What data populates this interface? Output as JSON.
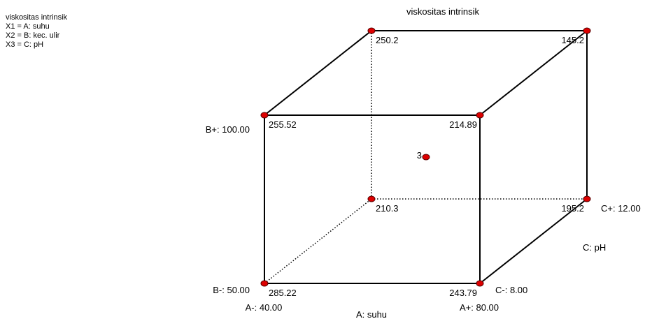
{
  "chart_data": {
    "type": "cube",
    "title": "viskositas intrinsik",
    "legend": [
      "viskositas intrinsik",
      "X1 = A: suhu",
      "X2 = B: kec. ulir",
      "X3 = C: pH"
    ],
    "axes": {
      "A": {
        "label": "A: suhu",
        "low": "A-: 40.00",
        "high": "A+: 80.00"
      },
      "B": {
        "low": "B-: 50.00",
        "high": "B+: 100.00"
      },
      "C": {
        "label": "C: pH",
        "low": "C-: 8.00",
        "high": "C+: 12.00"
      }
    },
    "corners": [
      {
        "A": "-",
        "B": "-",
        "C": "-",
        "value": "285.22"
      },
      {
        "A": "+",
        "B": "-",
        "C": "-",
        "value": "243.79"
      },
      {
        "A": "-",
        "B": "+",
        "C": "-",
        "value": "255.52"
      },
      {
        "A": "+",
        "B": "+",
        "C": "-",
        "value": "214.89"
      },
      {
        "A": "-",
        "B": "-",
        "C": "+",
        "value": "210.3"
      },
      {
        "A": "+",
        "B": "-",
        "C": "+",
        "value": "195.2"
      },
      {
        "A": "-",
        "B": "+",
        "C": "+",
        "value": "250.2"
      },
      {
        "A": "+",
        "B": "+",
        "C": "+",
        "value": "145.2"
      }
    ],
    "center_points": {
      "count": "3"
    },
    "hidden_edges_dotted": true,
    "point_color": "#dd0000"
  }
}
